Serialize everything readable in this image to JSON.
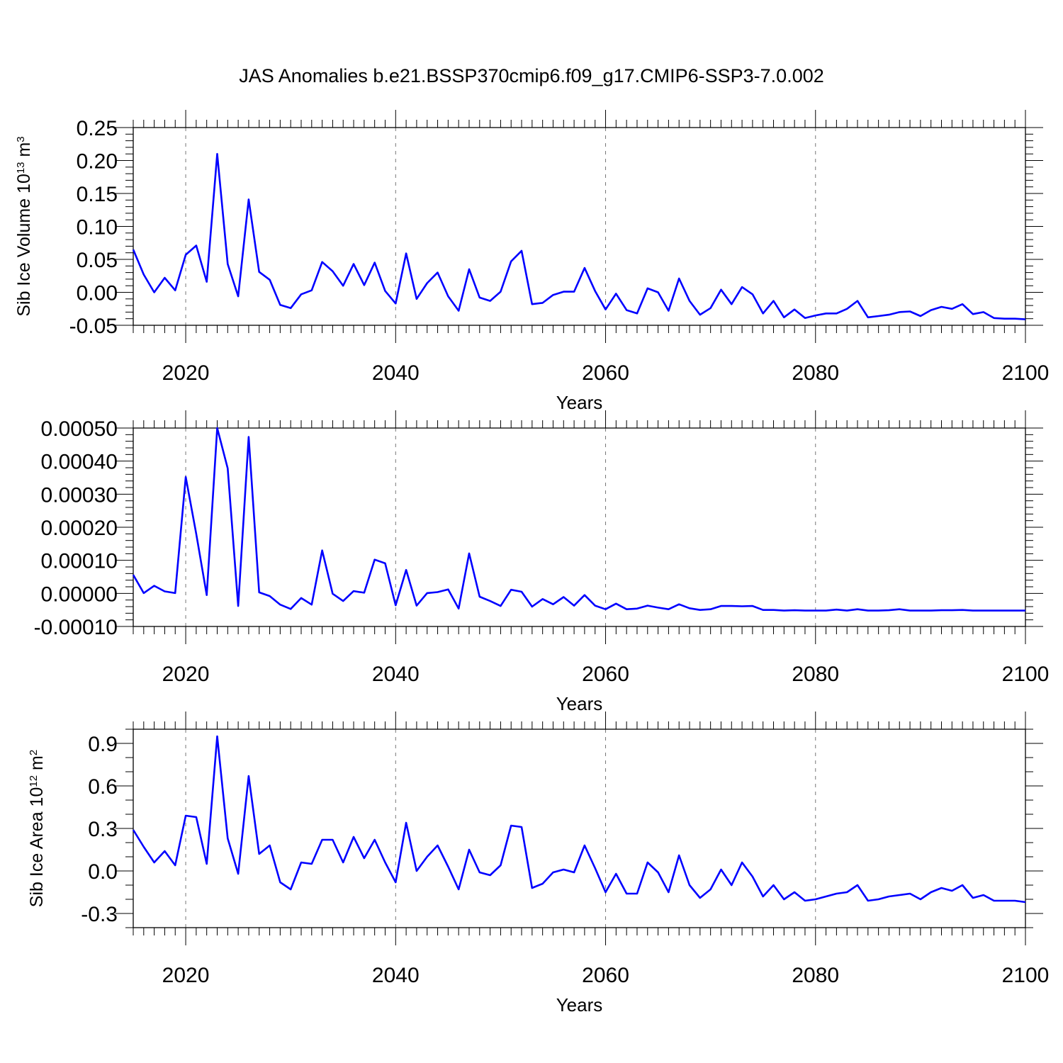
{
  "title": "JAS Anomalies b.e21.BSSP370cmip6.f09_g17.CMIP6-SSP3-7.0.002",
  "chart_data": [
    {
      "type": "line",
      "xlabel": "Years",
      "ylabel": "Sib Ice Volume 10",
      "ylabel_sup": "13",
      "ylabel_unit": " m",
      "ylabel_unit_sup": "3",
      "xlim": [
        2015,
        2100
      ],
      "ylim": [
        -0.05,
        0.25
      ],
      "xticks": [
        2020,
        2040,
        2060,
        2080,
        2100
      ],
      "xtick_labels": [
        "2020",
        "2040",
        "2060",
        "2080",
        "2100"
      ],
      "yticks": [
        -0.05,
        0.0,
        0.05,
        0.1,
        0.15,
        0.2,
        0.25
      ],
      "ytick_labels": [
        "-0.05",
        "0.00",
        "0.05",
        "0.10",
        "0.15",
        "0.20",
        "0.25"
      ],
      "grid": "vertical dashed at major x ticks",
      "color": "#0000ff",
      "x": [
        2015,
        2016,
        2017,
        2018,
        2019,
        2020,
        2021,
        2022,
        2023,
        2024,
        2025,
        2026,
        2027,
        2028,
        2029,
        2030,
        2031,
        2032,
        2033,
        2034,
        2035,
        2036,
        2037,
        2038,
        2039,
        2040,
        2041,
        2042,
        2043,
        2044,
        2045,
        2046,
        2047,
        2048,
        2049,
        2050,
        2051,
        2052,
        2053,
        2054,
        2055,
        2056,
        2057,
        2058,
        2059,
        2060,
        2061,
        2062,
        2063,
        2064,
        2065,
        2066,
        2067,
        2068,
        2069,
        2070,
        2071,
        2072,
        2073,
        2074,
        2075,
        2076,
        2077,
        2078,
        2079,
        2080,
        2081,
        2082,
        2083,
        2084,
        2085,
        2086,
        2087,
        2088,
        2089,
        2090,
        2091,
        2092,
        2093,
        2094,
        2095,
        2096,
        2097,
        2098,
        2099,
        2100
      ],
      "y": [
        0.065,
        0.027,
        0.0,
        0.022,
        0.003,
        0.057,
        0.071,
        0.016,
        0.21,
        0.043,
        -0.006,
        0.141,
        0.031,
        0.019,
        -0.019,
        -0.024,
        -0.003,
        0.003,
        0.046,
        0.032,
        0.01,
        0.043,
        0.011,
        0.045,
        0.002,
        -0.017,
        0.059,
        -0.01,
        0.014,
        0.03,
        -0.006,
        -0.028,
        0.035,
        -0.008,
        -0.013,
        0.001,
        0.047,
        0.063,
        -0.018,
        -0.016,
        -0.004,
        0.001,
        0.001,
        0.037,
        0.002,
        -0.026,
        -0.002,
        -0.027,
        -0.032,
        0.006,
        0.0,
        -0.028,
        0.021,
        -0.013,
        -0.034,
        -0.024,
        0.004,
        -0.018,
        0.008,
        -0.003,
        -0.032,
        -0.013,
        -0.038,
        -0.026,
        -0.039,
        -0.035,
        -0.032,
        -0.032,
        -0.025,
        -0.013,
        -0.038,
        -0.036,
        -0.034,
        -0.03,
        -0.029,
        -0.036,
        -0.027,
        -0.022,
        -0.025,
        -0.018,
        -0.033,
        -0.03,
        -0.039,
        -0.04,
        -0.04,
        -0.041
      ]
    },
    {
      "type": "line",
      "xlabel": "Years",
      "ylabel": "",
      "xlim": [
        2015,
        2100
      ],
      "ylim": [
        -0.0001,
        0.0005
      ],
      "xticks": [
        2020,
        2040,
        2060,
        2080,
        2100
      ],
      "xtick_labels": [
        "2020",
        "2040",
        "2060",
        "2080",
        "2100"
      ],
      "yticks": [
        -0.0001,
        0.0,
        0.0001,
        0.0002,
        0.0003,
        0.0004,
        0.0005
      ],
      "ytick_labels": [
        "-0.00010",
        "0.00000",
        "0.00010",
        "0.00020",
        "0.00030",
        "0.00040",
        "0.00050"
      ],
      "grid": "vertical dashed at major x ticks",
      "color": "#0000ff",
      "x": [
        2015,
        2016,
        2017,
        2018,
        2019,
        2020,
        2021,
        2022,
        2023,
        2024,
        2025,
        2026,
        2027,
        2028,
        2029,
        2030,
        2031,
        2032,
        2033,
        2034,
        2035,
        2036,
        2037,
        2038,
        2039,
        2040,
        2041,
        2042,
        2043,
        2044,
        2045,
        2046,
        2047,
        2048,
        2049,
        2050,
        2051,
        2052,
        2053,
        2054,
        2055,
        2056,
        2057,
        2058,
        2059,
        2060,
        2061,
        2062,
        2063,
        2064,
        2065,
        2066,
        2067,
        2068,
        2069,
        2070,
        2071,
        2072,
        2073,
        2074,
        2075,
        2076,
        2077,
        2078,
        2079,
        2080,
        2081,
        2082,
        2083,
        2084,
        2085,
        2086,
        2087,
        2088,
        2089,
        2090,
        2091,
        2092,
        2093,
        2094,
        2095,
        2096,
        2097,
        2098,
        2099,
        2100
      ],
      "y": [
        5.6e-05,
        1e-06,
        2.3e-05,
        6e-06,
        1e-06,
        0.000352,
        0.00018,
        -5e-06,
        0.0005,
        0.000378,
        -3.8e-05,
        0.000473,
        3e-06,
        -8e-06,
        -3.4e-05,
        -4.7e-05,
        -1.4e-05,
        -3.4e-05,
        0.00013,
        -1e-06,
        -2.3e-05,
        7e-06,
        2e-06,
        0.000102,
        9.1e-05,
        -3.6e-05,
        7.1e-05,
        -3.7e-05,
        1e-06,
        4e-06,
        1.2e-05,
        -4.6e-05,
        0.000121,
        -1e-05,
        -2.3e-05,
        -3.8e-05,
        1.1e-05,
        5e-06,
        -4e-05,
        -1.7e-05,
        -3.3e-05,
        -1.1e-05,
        -3.7e-05,
        -5e-06,
        -3.7e-05,
        -4.8e-05,
        -3.1e-05,
        -4.8e-05,
        -4.6e-05,
        -3.7e-05,
        -4.3e-05,
        -4.8e-05,
        -3.3e-05,
        -4.5e-05,
        -5e-05,
        -4.8e-05,
        -3.8e-05,
        -3.8e-05,
        -3.9e-05,
        -3.8e-05,
        -5e-05,
        -5e-05,
        -5.2e-05,
        -5.1e-05,
        -5.2e-05,
        -5.2e-05,
        -5.2e-05,
        -4.9e-05,
        -5.2e-05,
        -4.8e-05,
        -5.2e-05,
        -5.2e-05,
        -5.1e-05,
        -4.8e-05,
        -5.2e-05,
        -5.2e-05,
        -5.2e-05,
        -5.1e-05,
        -5.1e-05,
        -5e-05,
        -5.2e-05,
        -5.2e-05,
        -5.2e-05,
        -5.2e-05,
        -5.2e-05,
        -5.2e-05
      ]
    },
    {
      "type": "line",
      "xlabel": "Years",
      "ylabel": "Sib Ice Area 10",
      "ylabel_sup": "12",
      "ylabel_unit": " m",
      "ylabel_unit_sup": "2",
      "xlim": [
        2015,
        2100
      ],
      "ylim": [
        -0.4,
        1.0
      ],
      "xticks": [
        2020,
        2040,
        2060,
        2080,
        2100
      ],
      "xtick_labels": [
        "2020",
        "2040",
        "2060",
        "2080",
        "2100"
      ],
      "yticks": [
        -0.3,
        0.0,
        0.3,
        0.6,
        0.9
      ],
      "ytick_labels": [
        "-0.3",
        "0.0",
        "0.3",
        "0.6",
        "0.9"
      ],
      "grid": "vertical dashed at major x ticks",
      "color": "#0000ff",
      "x": [
        2015,
        2016,
        2017,
        2018,
        2019,
        2020,
        2021,
        2022,
        2023,
        2024,
        2025,
        2026,
        2027,
        2028,
        2029,
        2030,
        2031,
        2032,
        2033,
        2034,
        2035,
        2036,
        2037,
        2038,
        2039,
        2040,
        2041,
        2042,
        2043,
        2044,
        2045,
        2046,
        2047,
        2048,
        2049,
        2050,
        2051,
        2052,
        2053,
        2054,
        2055,
        2056,
        2057,
        2058,
        2059,
        2060,
        2061,
        2062,
        2063,
        2064,
        2065,
        2066,
        2067,
        2068,
        2069,
        2070,
        2071,
        2072,
        2073,
        2074,
        2075,
        2076,
        2077,
        2078,
        2079,
        2080,
        2081,
        2082,
        2083,
        2084,
        2085,
        2086,
        2087,
        2088,
        2089,
        2090,
        2091,
        2092,
        2093,
        2094,
        2095,
        2096,
        2097,
        2098,
        2099,
        2100
      ],
      "y": [
        0.29,
        0.17,
        0.06,
        0.14,
        0.04,
        0.39,
        0.38,
        0.05,
        0.95,
        0.23,
        -0.02,
        0.67,
        0.12,
        0.18,
        -0.08,
        -0.13,
        0.06,
        0.05,
        0.22,
        0.22,
        0.06,
        0.24,
        0.09,
        0.22,
        0.06,
        -0.08,
        0.34,
        0.0,
        0.1,
        0.18,
        0.03,
        -0.13,
        0.15,
        -0.01,
        -0.03,
        0.04,
        0.32,
        0.31,
        -0.12,
        -0.09,
        -0.01,
        0.01,
        -0.01,
        0.18,
        0.02,
        -0.15,
        -0.02,
        -0.16,
        -0.16,
        0.06,
        -0.01,
        -0.15,
        0.11,
        -0.1,
        -0.19,
        -0.13,
        0.01,
        -0.1,
        0.06,
        -0.04,
        -0.18,
        -0.1,
        -0.2,
        -0.15,
        -0.21,
        -0.2,
        -0.18,
        -0.16,
        -0.15,
        -0.1,
        -0.21,
        -0.2,
        -0.18,
        -0.17,
        -0.16,
        -0.2,
        -0.15,
        -0.12,
        -0.14,
        -0.1,
        -0.19,
        -0.17,
        -0.21,
        -0.21,
        -0.21,
        -0.22
      ]
    }
  ]
}
